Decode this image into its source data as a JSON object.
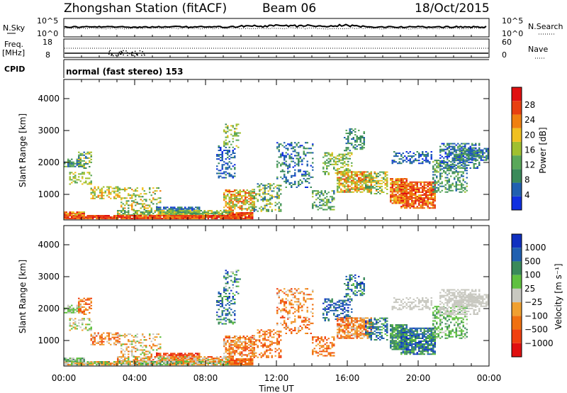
{
  "header": {
    "station": "Zhongshan Station (fitACF)",
    "beam": "Beam 06",
    "date": "18/Oct/2015"
  },
  "status_panels": {
    "nsky_label": "N.Sky",
    "nsky_ticks": [
      "10^5",
      "10^0"
    ],
    "nsearch_label": "N.Search",
    "nsearch_ticks": [
      "10^5",
      "10^0"
    ],
    "freq_label": "Freq.",
    "freq_unit": "[MHz]",
    "freq_ticks": [
      "18",
      "8"
    ],
    "nave_label": "Nave",
    "nave_ticks": [
      "60",
      "0"
    ],
    "cpid_label": "CPID",
    "cpid_text": "normal (fast stereo) 153"
  },
  "colors": {
    "power_scale": [
      "#1030e0",
      "#2060b0",
      "#3a8a5a",
      "#5aa85a",
      "#a0c030",
      "#f0c020",
      "#f08010",
      "#e84010",
      "#e01010"
    ],
    "velocity_scale": [
      "#e01010",
      "#f04010",
      "#f07010",
      "#f0a030",
      "#c8c8c0",
      "#60c040",
      "#3a8a5a",
      "#2060b0",
      "#1030c0"
    ]
  },
  "chart_data": [
    {
      "type": "heatmap",
      "ylabel": "Slant Range [km]",
      "y_ticks": [
        "1000",
        "2000",
        "3000",
        "4000"
      ],
      "ylim": [
        200,
        4600
      ],
      "colorbar_label": "Power [dB]",
      "colorbar_ticks": [
        "4",
        "8",
        "12",
        "16",
        "20",
        "24",
        "28"
      ],
      "x_ticks": [
        "00:00",
        "04:00",
        "08:00",
        "12:00",
        "16:00",
        "20:00",
        "00:00"
      ],
      "xlim_hours": [
        0,
        24
      ]
    },
    {
      "type": "heatmap",
      "ylabel": "Slant Range [km]",
      "y_ticks": [
        "1000",
        "2000",
        "3000",
        "4000"
      ],
      "ylim": [
        200,
        4600
      ],
      "colorbar_label": "Velocity [m s⁻¹]",
      "colorbar_ticks": [
        "1000",
        "500",
        "100",
        "25",
        "−25",
        "−100",
        "−500",
        "−1000"
      ],
      "xlabel": "Time UT",
      "x_ticks": [
        "00:00",
        "04:00",
        "08:00",
        "12:00",
        "16:00",
        "20:00",
        "00:00"
      ],
      "xlim_hours": [
        0,
        24
      ]
    }
  ]
}
